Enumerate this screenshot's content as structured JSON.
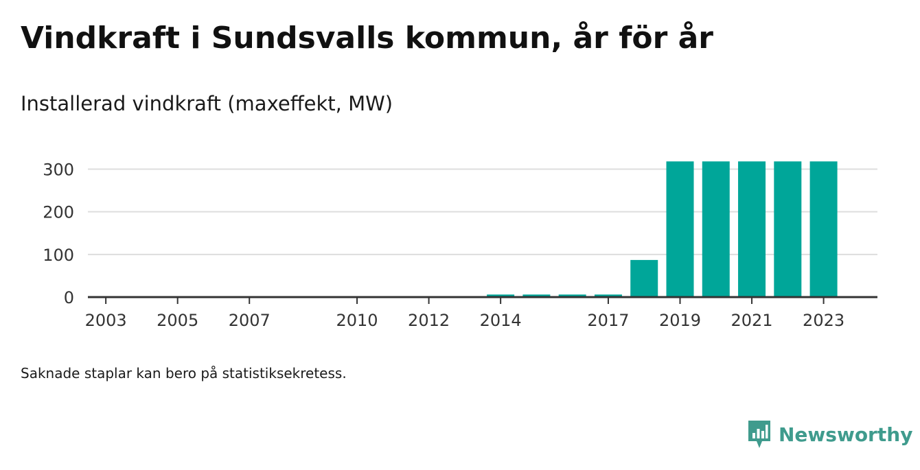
{
  "title": "Vindkraft i Sundsvalls kommun, år för år",
  "subtitle": "Installerad vindkraft (maxeffekt, MW)",
  "footnote": "Saknade staplar kan bero på statistiksekretess.",
  "brand": {
    "name": "Newsworthy",
    "icon": "newsworthy-logo-icon"
  },
  "colors": {
    "bar": "#00a699",
    "grid": "#dddddd",
    "axis": "#333333",
    "brand": "#3f9b8d"
  },
  "chart_data": {
    "type": "bar",
    "x": [
      2003,
      2004,
      2005,
      2006,
      2007,
      2009,
      2010,
      2011,
      2012,
      2013,
      2014,
      2015,
      2016,
      2017,
      2018,
      2019,
      2020,
      2021,
      2022,
      2023
    ],
    "values": [
      0,
      0,
      0,
      0,
      0,
      0,
      0,
      0,
      0,
      0,
      6,
      6,
      6,
      6,
      87,
      318,
      318,
      318,
      318,
      318
    ],
    "x_ticks": [
      "2003",
      "2005",
      "2007",
      "2010",
      "2012",
      "2014",
      "2017",
      "2019",
      "2021",
      "2023"
    ],
    "y_ticks": [
      "0",
      "100",
      "200",
      "300"
    ],
    "ylim": [
      0,
      320
    ],
    "xlim": [
      2002.5,
      2024.5
    ],
    "grid": true,
    "legend": "none"
  }
}
